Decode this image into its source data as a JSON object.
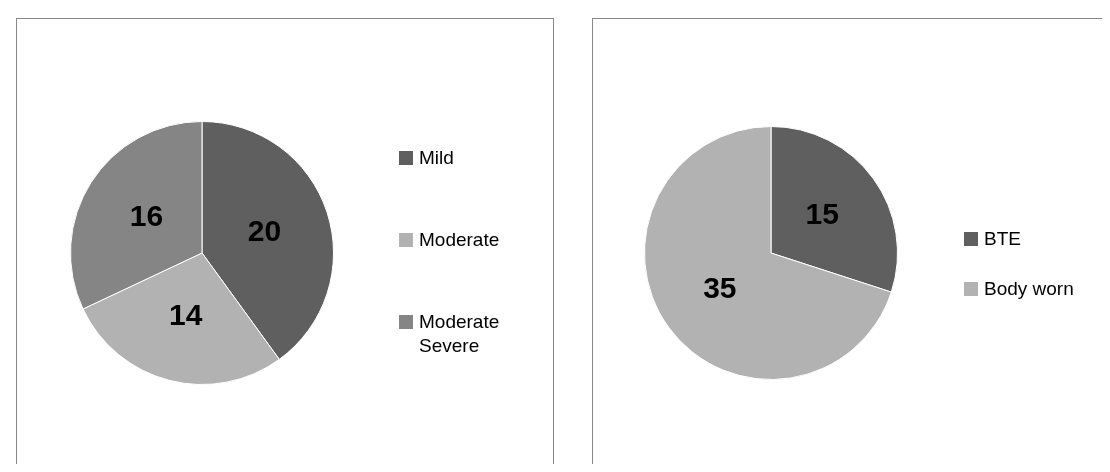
{
  "chart_data": [
    {
      "type": "pie",
      "categories": [
        "Mild",
        "Moderate",
        "Moderate Severe"
      ],
      "values": [
        20,
        14,
        16
      ],
      "colors": [
        "#5f5f5f",
        "#b2b2b2",
        "#858585"
      ],
      "data_labels": true,
      "legend": "right"
    },
    {
      "type": "pie",
      "categories": [
        "BTE",
        "Body worn"
      ],
      "values": [
        15,
        35
      ],
      "colors": [
        "#5f5f5f",
        "#b2b2b2"
      ],
      "data_labels": true,
      "legend": "right"
    }
  ]
}
